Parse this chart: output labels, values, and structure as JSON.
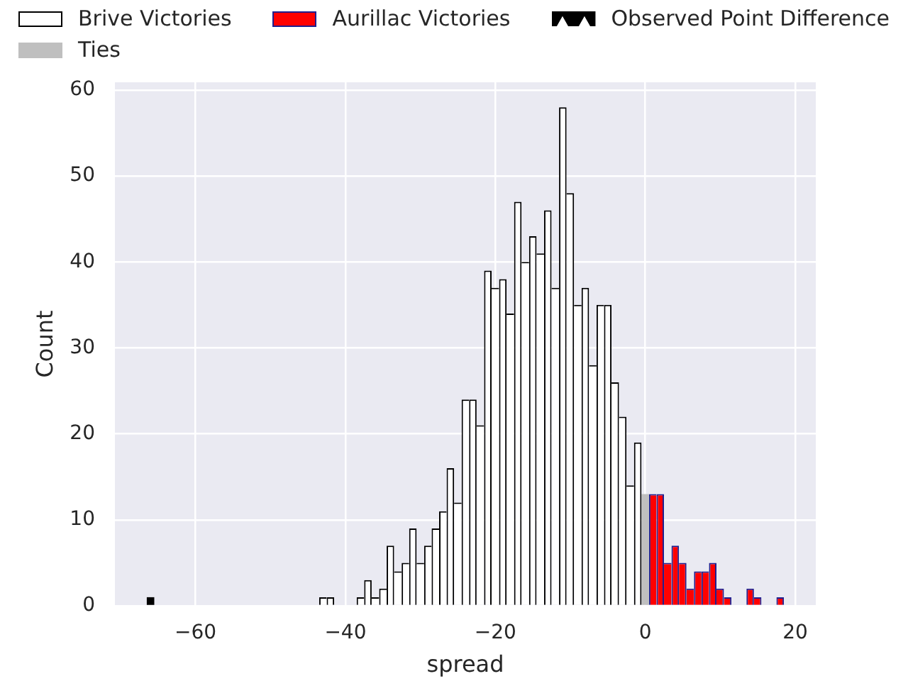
{
  "chart_data": {
    "type": "histogram",
    "xlabel": "spread",
    "ylabel": "Count",
    "bins": [
      -66.5,
      -65.5,
      -64.5,
      -63.5,
      -62.5,
      -61.5,
      -60.5,
      -59.5,
      -58.5,
      -57.5,
      -56.5,
      -55.5,
      -54.5,
      -53.5,
      -52.5,
      -51.5,
      -50.5,
      -49.5,
      -48.5,
      -47.5,
      -46.5,
      -45.5,
      -44.5,
      -43.5,
      -42.5,
      -41.5,
      -40.5,
      -39.5,
      -38.5,
      -37.5,
      -36.5,
      -35.5,
      -34.5,
      -33.5,
      -32.5,
      -31.5,
      -30.5,
      -29.5,
      -28.5,
      -27.5,
      -26.5,
      -25.5,
      -24.5,
      -23.5,
      -22.5,
      -21.5,
      -20.5,
      -19.5,
      -18.5,
      -17.5,
      -16.5,
      -15.5,
      -14.5,
      -13.5,
      -12.5,
      -11.5,
      -10.5,
      -9.5,
      -8.5,
      -7.5,
      -6.5,
      -5.5,
      -4.5,
      -3.5,
      -2.5,
      -1.5,
      -0.5,
      0.5,
      1.5,
      2.5,
      3.5,
      4.5,
      5.5,
      6.5,
      7.5,
      8.5,
      9.5,
      10.5,
      11.5,
      12.5,
      13.5,
      14.5,
      15.5,
      16.5,
      17.5,
      18.5
    ],
    "series": [
      {
        "name": "Brive Victories",
        "color": "#ffffff",
        "values": [
          0,
          0,
          0,
          0,
          0,
          0,
          0,
          0,
          0,
          0,
          0,
          0,
          0,
          0,
          0,
          0,
          0,
          0,
          0,
          0,
          0,
          0,
          0,
          1,
          1,
          0,
          0,
          0,
          1,
          3,
          1,
          2,
          7,
          4,
          5,
          9,
          5,
          7,
          9,
          11,
          16,
          12,
          24,
          24,
          21,
          39,
          37,
          38,
          34,
          47,
          40,
          43,
          41,
          46,
          37,
          58,
          48,
          35,
          37,
          28,
          35,
          35,
          26,
          22,
          14,
          19,
          null,
          null,
          null,
          null,
          null,
          null,
          null,
          null,
          null,
          null,
          null,
          null,
          null,
          null,
          null,
          null,
          null,
          null,
          null
        ]
      },
      {
        "name": "Ties",
        "color": "#bfbfbf",
        "values": [
          null,
          null,
          null,
          null,
          null,
          null,
          null,
          null,
          null,
          null,
          null,
          null,
          null,
          null,
          null,
          null,
          null,
          null,
          null,
          null,
          null,
          null,
          null,
          null,
          null,
          null,
          null,
          null,
          null,
          null,
          null,
          null,
          null,
          null,
          null,
          null,
          null,
          null,
          null,
          null,
          null,
          null,
          null,
          null,
          null,
          null,
          null,
          null,
          null,
          null,
          null,
          null,
          null,
          null,
          null,
          null,
          null,
          null,
          null,
          null,
          null,
          null,
          null,
          null,
          null,
          null,
          13,
          null,
          null,
          null,
          null,
          null,
          null,
          null,
          null,
          null,
          null,
          null,
          null,
          null,
          null,
          null,
          null,
          null,
          null
        ]
      },
      {
        "name": "Aurillac Victories",
        "color": "#ff0000",
        "values": [
          null,
          null,
          null,
          null,
          null,
          null,
          null,
          null,
          null,
          null,
          null,
          null,
          null,
          null,
          null,
          null,
          null,
          null,
          null,
          null,
          null,
          null,
          null,
          null,
          null,
          null,
          null,
          null,
          null,
          null,
          null,
          null,
          null,
          null,
          null,
          null,
          null,
          null,
          null,
          null,
          null,
          null,
          null,
          null,
          null,
          null,
          null,
          null,
          null,
          null,
          null,
          null,
          null,
          null,
          null,
          null,
          null,
          null,
          null,
          null,
          null,
          null,
          null,
          null,
          null,
          null,
          null,
          13,
          13,
          5,
          7,
          5,
          2,
          4,
          4,
          5,
          2,
          1,
          0,
          0,
          2,
          1,
          0,
          0,
          1
        ]
      },
      {
        "name": "Observed Point Difference",
        "color": "#000000",
        "values": [
          1,
          null,
          null,
          null,
          null,
          null,
          null,
          null,
          null,
          null,
          null,
          null,
          null,
          null,
          null,
          null,
          null,
          null,
          null,
          null,
          null,
          null,
          null,
          null,
          null,
          null,
          null,
          null,
          null,
          null,
          null,
          null,
          null,
          null,
          null,
          null,
          null,
          null,
          null,
          null,
          null,
          null,
          null,
          null,
          null,
          null,
          null,
          null,
          null,
          null,
          null,
          null,
          null,
          null,
          null,
          null,
          null,
          null,
          null,
          null,
          null,
          null,
          null,
          null,
          null,
          null,
          null,
          null,
          null,
          null,
          null,
          null,
          null,
          null,
          null,
          null,
          null,
          null,
          null,
          null,
          null,
          null,
          null,
          null,
          null
        ]
      }
    ],
    "xlim": [
      -70.75,
      22.75
    ],
    "xticks": [
      {
        "value": -60,
        "label": "−60"
      },
      {
        "value": -40,
        "label": "−40"
      },
      {
        "value": -20,
        "label": "−20"
      },
      0,
      20
    ],
    "ylim": [
      0,
      60.9
    ],
    "yticks": [
      0,
      10,
      20,
      30,
      40,
      50,
      60
    ],
    "grid": true,
    "legend": "top"
  }
}
